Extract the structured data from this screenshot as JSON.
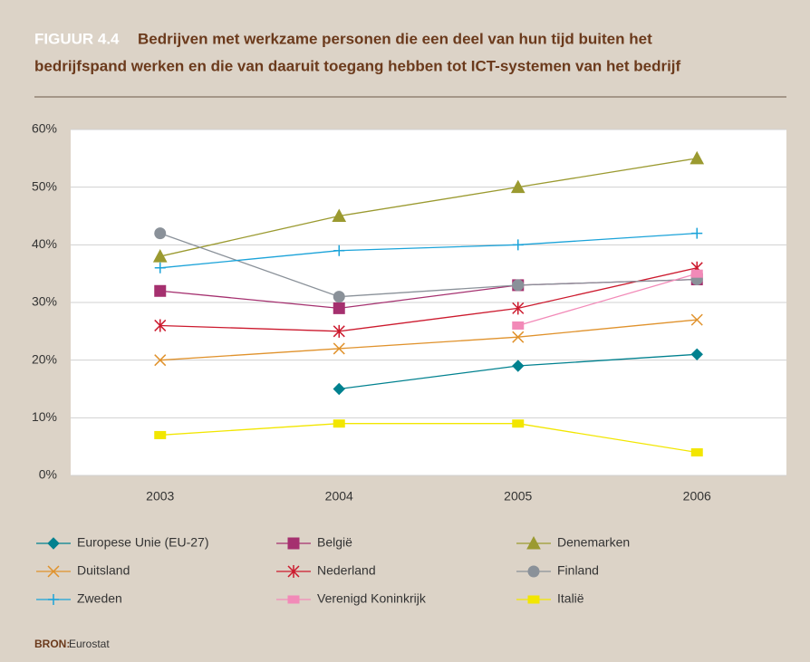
{
  "chart_data": {
    "type": "line",
    "figure_label": "FIGUUR 4.4",
    "title": [
      "Bedrijven met werkzame personen die een deel van hun tijd buiten het",
      "bedrijfspand werken en die van daaruit toegang hebben tot ICT-systemen van het bedrijf"
    ],
    "categories": [
      "2003",
      "2004",
      "2005",
      "2006"
    ],
    "ylim": [
      0,
      60
    ],
    "yticks": [
      {
        "value": 0,
        "label": "0%"
      },
      {
        "value": 10,
        "label": "10%"
      },
      {
        "value": 20,
        "label": "20%"
      },
      {
        "value": 30,
        "label": "30%"
      },
      {
        "value": 40,
        "label": "40%"
      },
      {
        "value": 50,
        "label": "50%"
      },
      {
        "value": 60,
        "label": "60%"
      }
    ],
    "grid": true,
    "series": [
      {
        "name": "Europese Unie (EU-27)",
        "color": "#00818f",
        "marker": "diamond",
        "values": [
          null,
          15,
          19,
          21
        ]
      },
      {
        "name": "België",
        "color": "#a5306f",
        "marker": "square",
        "values": [
          32,
          29,
          33,
          34
        ]
      },
      {
        "name": "Denemarken",
        "color": "#9b9a30",
        "marker": "triangle",
        "values": [
          38,
          45,
          50,
          55
        ]
      },
      {
        "name": "Duitsland",
        "color": "#e0922c",
        "marker": "x",
        "values": [
          20,
          22,
          24,
          27
        ]
      },
      {
        "name": "Nederland",
        "color": "#cc1a2e",
        "marker": "star",
        "values": [
          26,
          25,
          29,
          36
        ]
      },
      {
        "name": "Finland",
        "color": "#8a9199",
        "marker": "circle",
        "values": [
          42,
          31,
          33,
          34
        ]
      },
      {
        "name": "Zweden",
        "color": "#1ba3d9",
        "marker": "plus",
        "values": [
          36,
          39,
          40,
          42
        ]
      },
      {
        "name": "Verenigd Koninkrijk",
        "color": "#f28ab8",
        "marker": "rect",
        "values": [
          null,
          null,
          26,
          35
        ]
      },
      {
        "name": "Italië",
        "color": "#f2e600",
        "marker": "rect",
        "values": [
          7,
          9,
          9,
          4
        ]
      }
    ],
    "source_label": "BRON:",
    "source": "Eurostat"
  }
}
